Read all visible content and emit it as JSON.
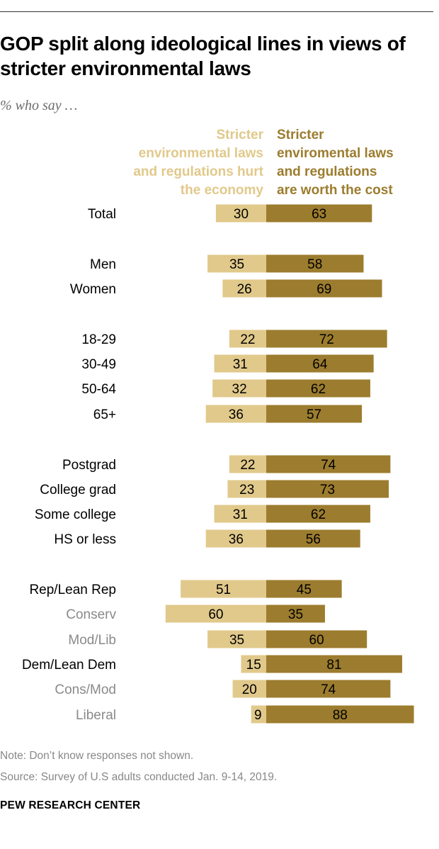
{
  "title": "GOP split along ideological lines in views of stricter environmental laws",
  "subtitle": "% who say …",
  "legend": {
    "left_lines": [
      "Stricter",
      "environmental laws",
      "and regulations hurt",
      "the economy"
    ],
    "right_lines": [
      "Stricter",
      "enviromental laws",
      "and regulations",
      "are worth the cost"
    ]
  },
  "colors": {
    "hurt": "#e1c98b",
    "worth": "#9c7c2e",
    "label_primary": "#000000",
    "label_secondary": "#8a8a8a"
  },
  "chart_data": {
    "type": "bar",
    "orientation": "horizontal-diverging",
    "series": [
      {
        "name": "Stricter environmental laws and regulations hurt the economy",
        "values": [
          30,
          35,
          26,
          22,
          31,
          32,
          36,
          22,
          23,
          31,
          36,
          51,
          60,
          35,
          15,
          20,
          9
        ]
      },
      {
        "name": "Stricter enviromental laws and regulations are worth the cost",
        "values": [
          63,
          58,
          69,
          72,
          64,
          62,
          57,
          74,
          73,
          62,
          56,
          45,
          35,
          60,
          81,
          74,
          88
        ]
      }
    ],
    "categories": [
      "Total",
      "Men",
      "Women",
      "18-29",
      "30-49",
      "50-64",
      "65+",
      "Postgrad",
      "College grad",
      "Some college",
      "HS or less",
      "Rep/Lean Rep",
      "Conserv",
      "Mod/Lib",
      "Dem/Lean Dem",
      "Cons/Mod",
      "Liberal"
    ],
    "sub_categories": [
      "Conserv",
      "Mod/Lib",
      "Cons/Mod",
      "Liberal"
    ],
    "groups": [
      [
        "Total"
      ],
      [
        "Men",
        "Women"
      ],
      [
        "18-29",
        "30-49",
        "50-64",
        "65+"
      ],
      [
        "Postgrad",
        "College grad",
        "Some college",
        "HS or less"
      ],
      [
        "Rep/Lean Rep",
        "Conserv",
        "Mod/Lib",
        "Dem/Lean Dem",
        "Cons/Mod",
        "Liberal"
      ]
    ],
    "units": "%"
  },
  "notes": {
    "note": "Note: Don’t know responses not shown.",
    "source": "Source: Survey of U.S adults conducted Jan. 9-14, 2019.",
    "brand": "PEW RESEARCH CENTER"
  }
}
